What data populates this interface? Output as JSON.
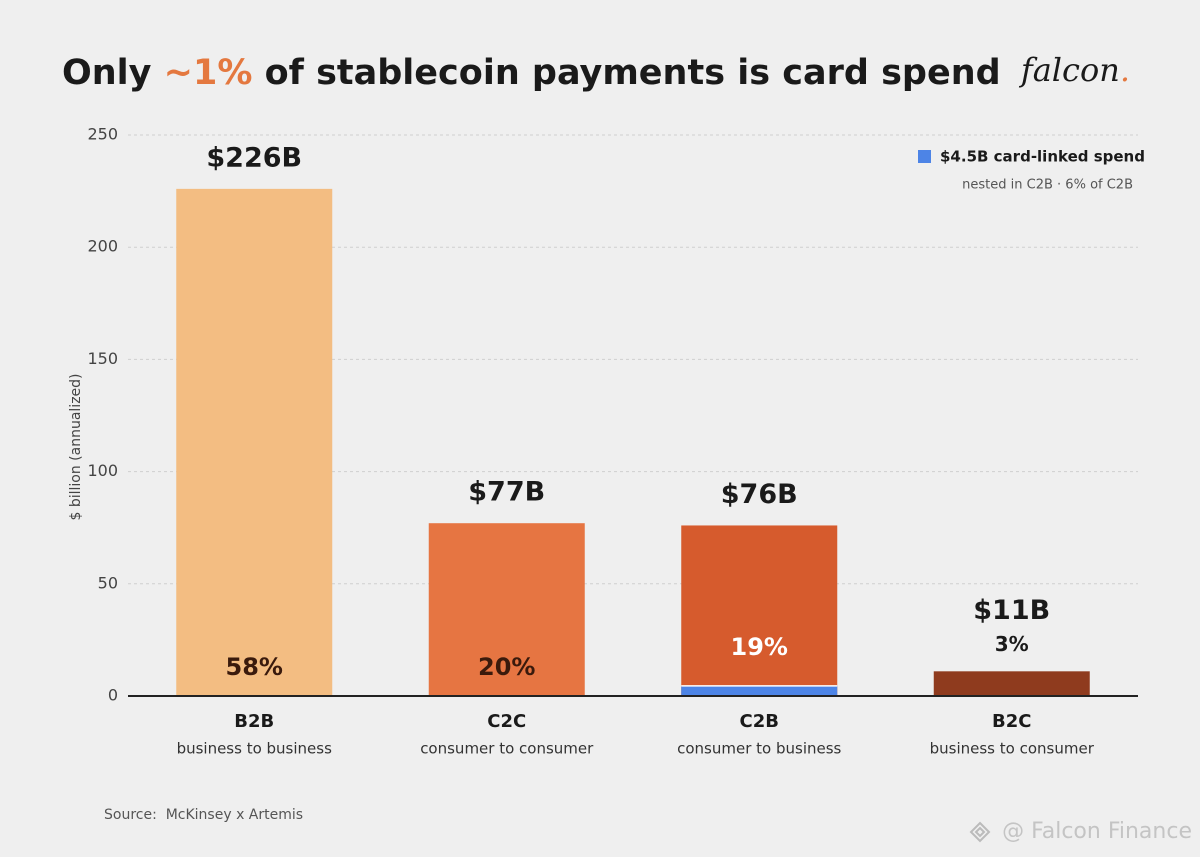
{
  "chart_data": {
    "type": "bar",
    "title": [
      "Only ",
      "~1%",
      " of stablecoin payments is card spend"
    ],
    "title_color": "#1a1a1a",
    "highlight_color": "#e4783f",
    "logo": {
      "text": "falcon",
      "dot": "."
    },
    "y_label": "$ billion (annualized)",
    "categories": [
      "B2B",
      "C2C",
      "C2B",
      "B2C"
    ],
    "category_subtitles": [
      "business to business",
      "consumer to consumer",
      "consumer to business",
      "business to consumer"
    ],
    "values": [
      226,
      77,
      76,
      11
    ],
    "value_labels": [
      "$226B",
      "$77B",
      "$76B",
      "$11B"
    ],
    "share_labels": [
      "58%",
      "20%",
      "19%",
      "3%"
    ],
    "share_label_colors": [
      "#3a1a0c",
      "#3a1a0c",
      "#ffffff",
      "#1a1a1a"
    ],
    "colors": [
      "#f3bd82",
      "#e67542",
      "#d65b2d",
      "#8f3b1e"
    ],
    "card_linked": {
      "value": 4.5,
      "parent": "C2B",
      "color": "#4d84e6",
      "label": "$4.5B card-linked spend",
      "note": "nested in C2B · 6% of C2B"
    },
    "ylim": [
      0,
      250
    ],
    "yticks": [
      0,
      50,
      100,
      150,
      200,
      250
    ],
    "grid": true,
    "source": "Source:  McKinsey x Artemis",
    "watermark": "@ Falcon Finance"
  }
}
